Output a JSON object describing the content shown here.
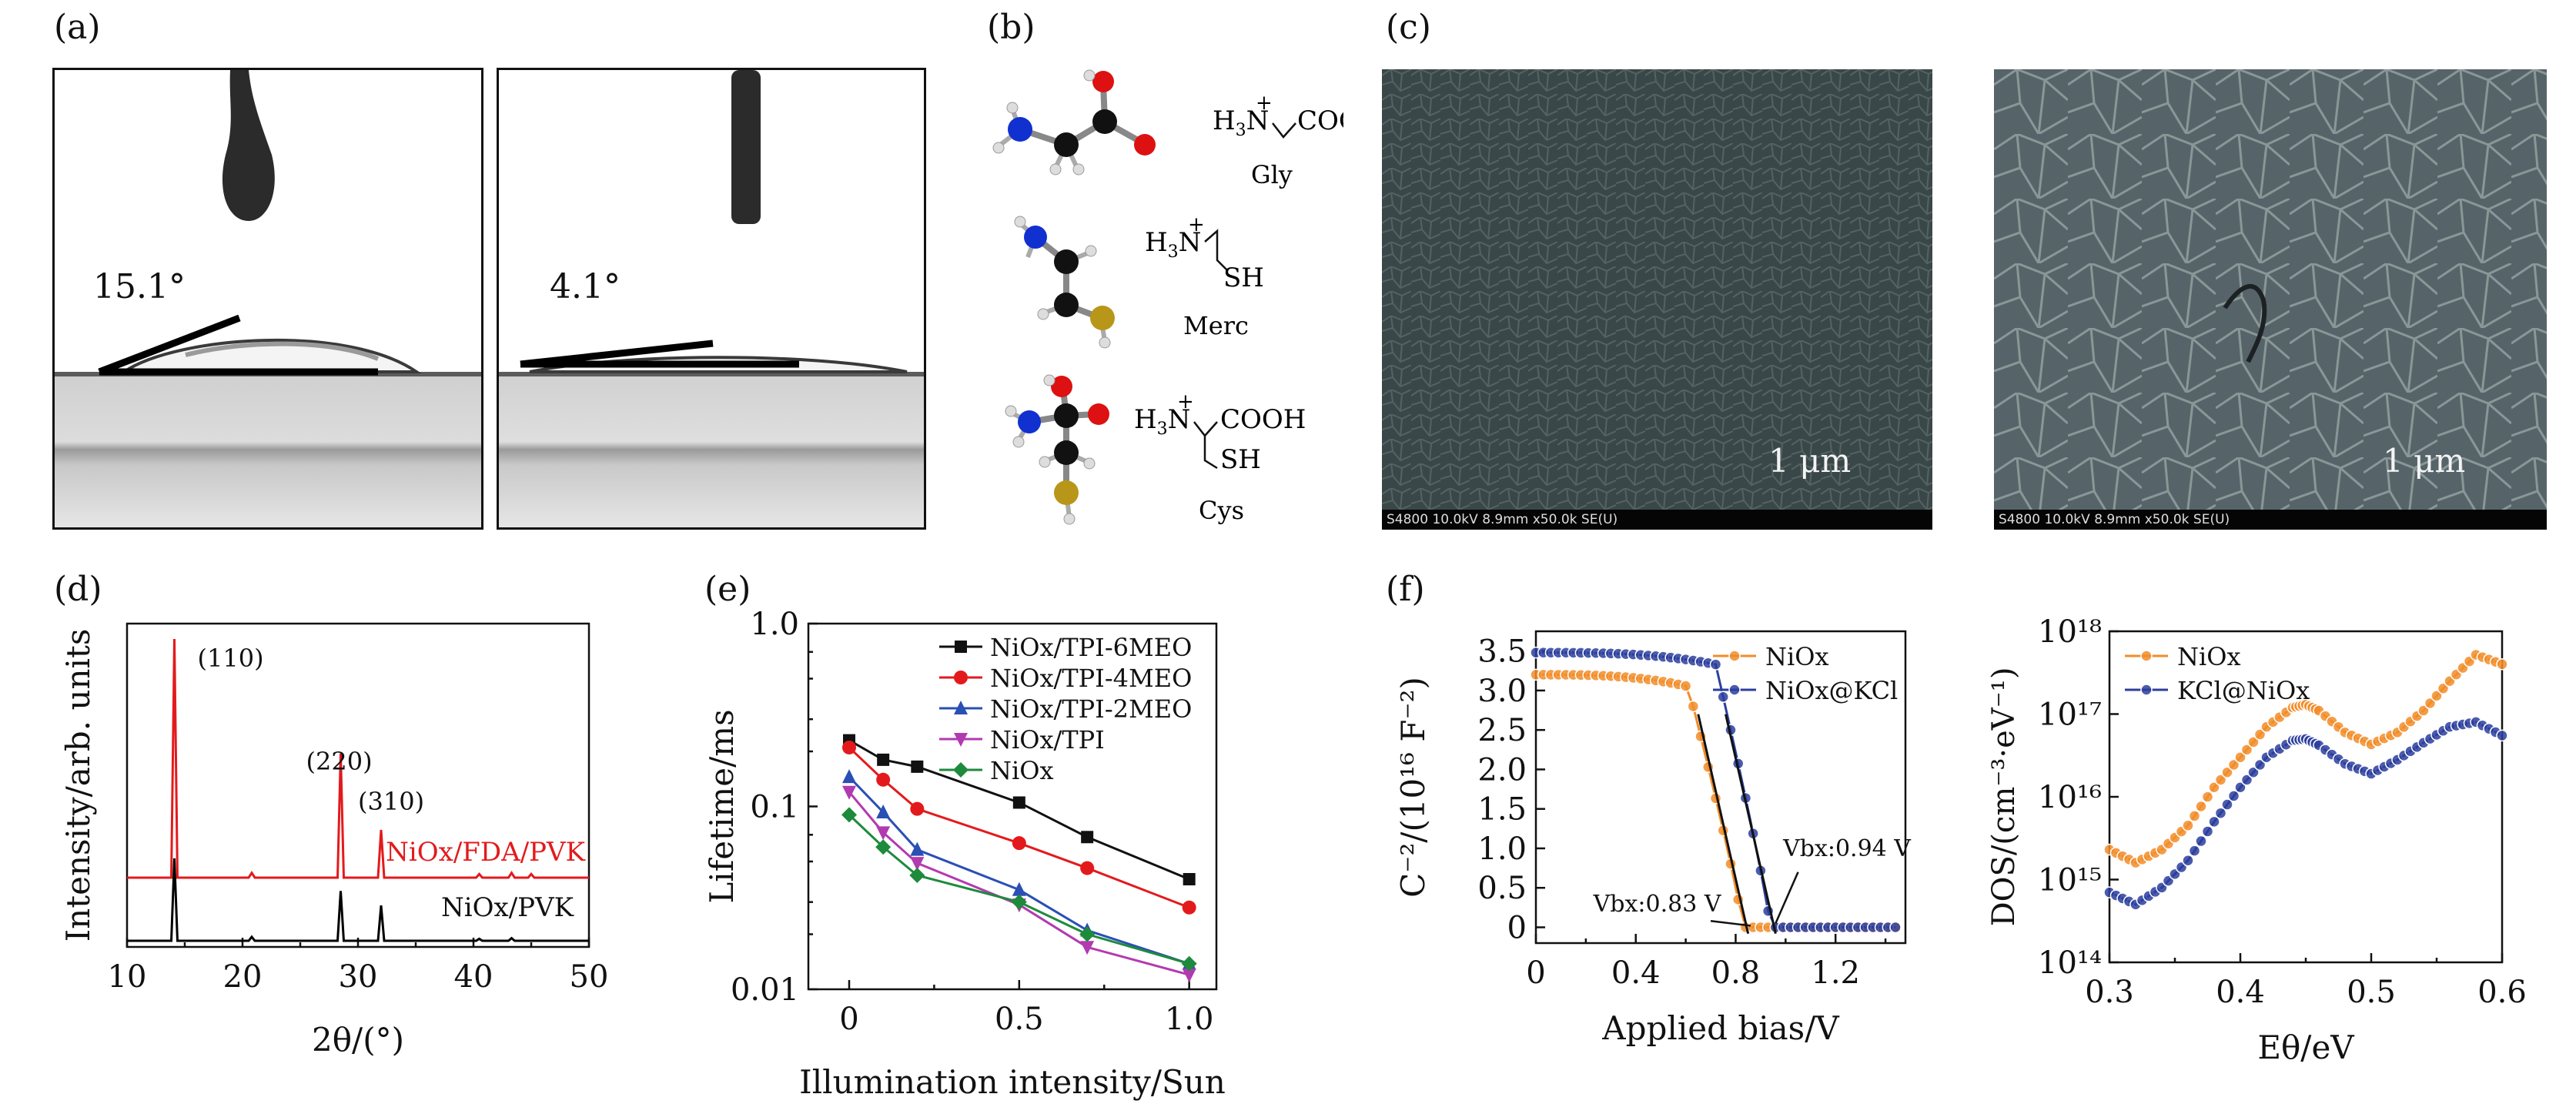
{
  "panels": {
    "a": {
      "label": "(a)",
      "images": [
        {
          "angle": "15.1°"
        },
        {
          "angle": "4.1°"
        }
      ]
    },
    "b": {
      "label": "(b)",
      "molecules": [
        {
          "name": "Gly",
          "formula_left": "H",
          "formula_sub": "3",
          "formula_n": "N",
          "formula_charge": "+",
          "formula_right": "COOH"
        },
        {
          "name": "Merc",
          "formula_left": "H",
          "formula_sub": "3",
          "formula_n": "N",
          "formula_charge": "+",
          "formula_right": "SH"
        },
        {
          "name": "Cys",
          "formula_left": "H",
          "formula_sub": "3",
          "formula_n": "N",
          "formula_charge": "+",
          "formula_right": "COOH",
          "formula_right2": "SH"
        }
      ]
    },
    "c": {
      "label": "(c)",
      "images": [
        {
          "scale": "1 μm",
          "info": "S4800 10.0kV 8.9mm x50.0k SE(U)"
        },
        {
          "scale": "1 μm",
          "info": "S4800 10.0kV 8.9mm x50.0k SE(U)"
        }
      ]
    },
    "d": {
      "label": "(d)"
    },
    "e": {
      "label": "(e)"
    },
    "f": {
      "label": "(f)"
    }
  },
  "chart_data": [
    {
      "id": "d",
      "type": "line",
      "xlabel": "2θ/(°)",
      "ylabel": "Intensity/arb. units",
      "xlim": [
        10,
        50
      ],
      "xticks": [
        10,
        20,
        30,
        40,
        50
      ],
      "series": [
        {
          "name": "NiOx/FDA/PVK",
          "color": "#e31a1c",
          "peaks": [
            [
              14.1,
              1.0
            ],
            [
              20.8,
              0.02
            ],
            [
              28.5,
              0.52
            ],
            [
              32.0,
              0.2
            ],
            [
              40.5,
              0.015
            ],
            [
              43.3,
              0.02
            ],
            [
              45.0,
              0.015
            ]
          ]
        },
        {
          "name": "NiOx/PVK",
          "color": "#000000",
          "peaks": [
            [
              14.1,
              0.63
            ],
            [
              20.8,
              0.03
            ],
            [
              28.5,
              0.38
            ],
            [
              32.0,
              0.27
            ],
            [
              40.5,
              0.015
            ],
            [
              43.3,
              0.02
            ]
          ]
        }
      ],
      "annotations": [
        "(110)",
        "(220)",
        "(310)"
      ]
    },
    {
      "id": "e",
      "type": "line",
      "xlabel": "Illumination intensity/Sun",
      "ylabel": "Lifetime/ms",
      "yscale": "log",
      "xlim": [
        -0.12,
        1.08
      ],
      "ylim": [
        0.01,
        1.0
      ],
      "xticks": [
        0,
        0.5,
        1.0
      ],
      "yticks": [
        "0.01",
        "0.1",
        "1.0"
      ],
      "x": [
        0,
        0.1,
        0.2,
        0.5,
        0.7,
        1.0
      ],
      "legend_position": "top-right",
      "series": [
        {
          "name": "NiOx/TPI-6MEO",
          "color": "#111111",
          "marker": "square",
          "values": [
            0.23,
            0.18,
            0.165,
            0.105,
            0.068,
            0.04
          ]
        },
        {
          "name": "NiOx/TPI-4MEO",
          "color": "#e31a1c",
          "marker": "circle",
          "values": [
            0.21,
            0.14,
            0.097,
            0.063,
            0.046,
            0.028
          ]
        },
        {
          "name": "NiOx/TPI-2MEO",
          "color": "#2a4fb5",
          "marker": "triangle-up",
          "values": [
            0.145,
            0.093,
            0.058,
            0.035,
            0.021,
            0.0138
          ]
        },
        {
          "name": "NiOx/TPI",
          "color": "#b23ab0",
          "marker": "triangle-down",
          "values": [
            0.12,
            0.072,
            0.049,
            0.029,
            0.017,
            0.012
          ]
        },
        {
          "name": "NiOx",
          "color": "#1e8a3c",
          "marker": "diamond",
          "values": [
            0.09,
            0.06,
            0.042,
            0.03,
            0.02,
            0.0138
          ]
        }
      ]
    },
    {
      "id": "f1",
      "type": "line",
      "xlabel": "Applied bias/V",
      "ylabel": "C⁻²/(10¹⁶ F⁻²)",
      "xlim": [
        0,
        1.48
      ],
      "ylim": [
        -0.2,
        3.75
      ],
      "xticks": [
        "0",
        "0.4",
        "0.8",
        "1.2"
      ],
      "yticks": [
        "0",
        "0.5",
        "1.0",
        "1.5",
        "2.0",
        "2.5",
        "3.0",
        "3.5"
      ],
      "legend_position": "top-right",
      "annotations": [
        {
          "text": "Vbx:0.83 V"
        },
        {
          "text": "Vbx:0.94 V"
        }
      ],
      "series": [
        {
          "name": "NiOx",
          "color": "#f28c28",
          "plateau": 3.2,
          "knee": 0.83
        },
        {
          "name": "NiOx@KCl",
          "color": "#2c3e9e",
          "plateau": 3.48,
          "knee": 0.94
        }
      ]
    },
    {
      "id": "f2",
      "type": "line",
      "xlabel": "Eθ/eV",
      "ylabel": "DOS/(cm⁻³·eV⁻¹)",
      "yscale": "log",
      "xlim": [
        0.3,
        0.6
      ],
      "ylim": [
        100000000000000.0,
        1e+18
      ],
      "xticks": [
        "0.3",
        "0.4",
        "0.5",
        "0.6"
      ],
      "yticks": [
        "10¹⁴",
        "10¹⁵",
        "10¹⁶",
        "10¹⁷",
        "10¹⁸"
      ],
      "legend_position": "top-left",
      "series": [
        {
          "name": "NiOx",
          "color": "#f28c28",
          "x": [
            0.3,
            0.32,
            0.34,
            0.36,
            0.38,
            0.4,
            0.42,
            0.44,
            0.45,
            0.46,
            0.48,
            0.5,
            0.52,
            0.54,
            0.56,
            0.58,
            0.6
          ],
          "values": [
            2300000000000000.0,
            1600000000000000.0,
            2300000000000000.0,
            4500000000000000.0,
            1.3e+16,
            3e+16,
            7e+16,
            1.2e+17,
            1.3e+17,
            1.1e+17,
            6e+16,
            4.3e+16,
            6e+16,
            1.1e+17,
            2.5e+17,
            5.2e+17,
            4e+17
          ]
        },
        {
          "name": "KCl@NiOx",
          "color": "#2c3e9e",
          "x": [
            0.3,
            0.32,
            0.34,
            0.36,
            0.38,
            0.4,
            0.42,
            0.44,
            0.45,
            0.46,
            0.48,
            0.5,
            0.52,
            0.54,
            0.56,
            0.58,
            0.6
          ],
          "values": [
            700000000000000.0,
            500000000000000.0,
            800000000000000.0,
            1700000000000000.0,
            5000000000000000.0,
            1.3e+16,
            3e+16,
            4.8e+16,
            5e+16,
            4.2e+16,
            2.5e+16,
            1.9e+16,
            2.8e+16,
            4.5e+16,
            7e+16,
            8e+16,
            5.5e+16
          ]
        }
      ]
    }
  ]
}
